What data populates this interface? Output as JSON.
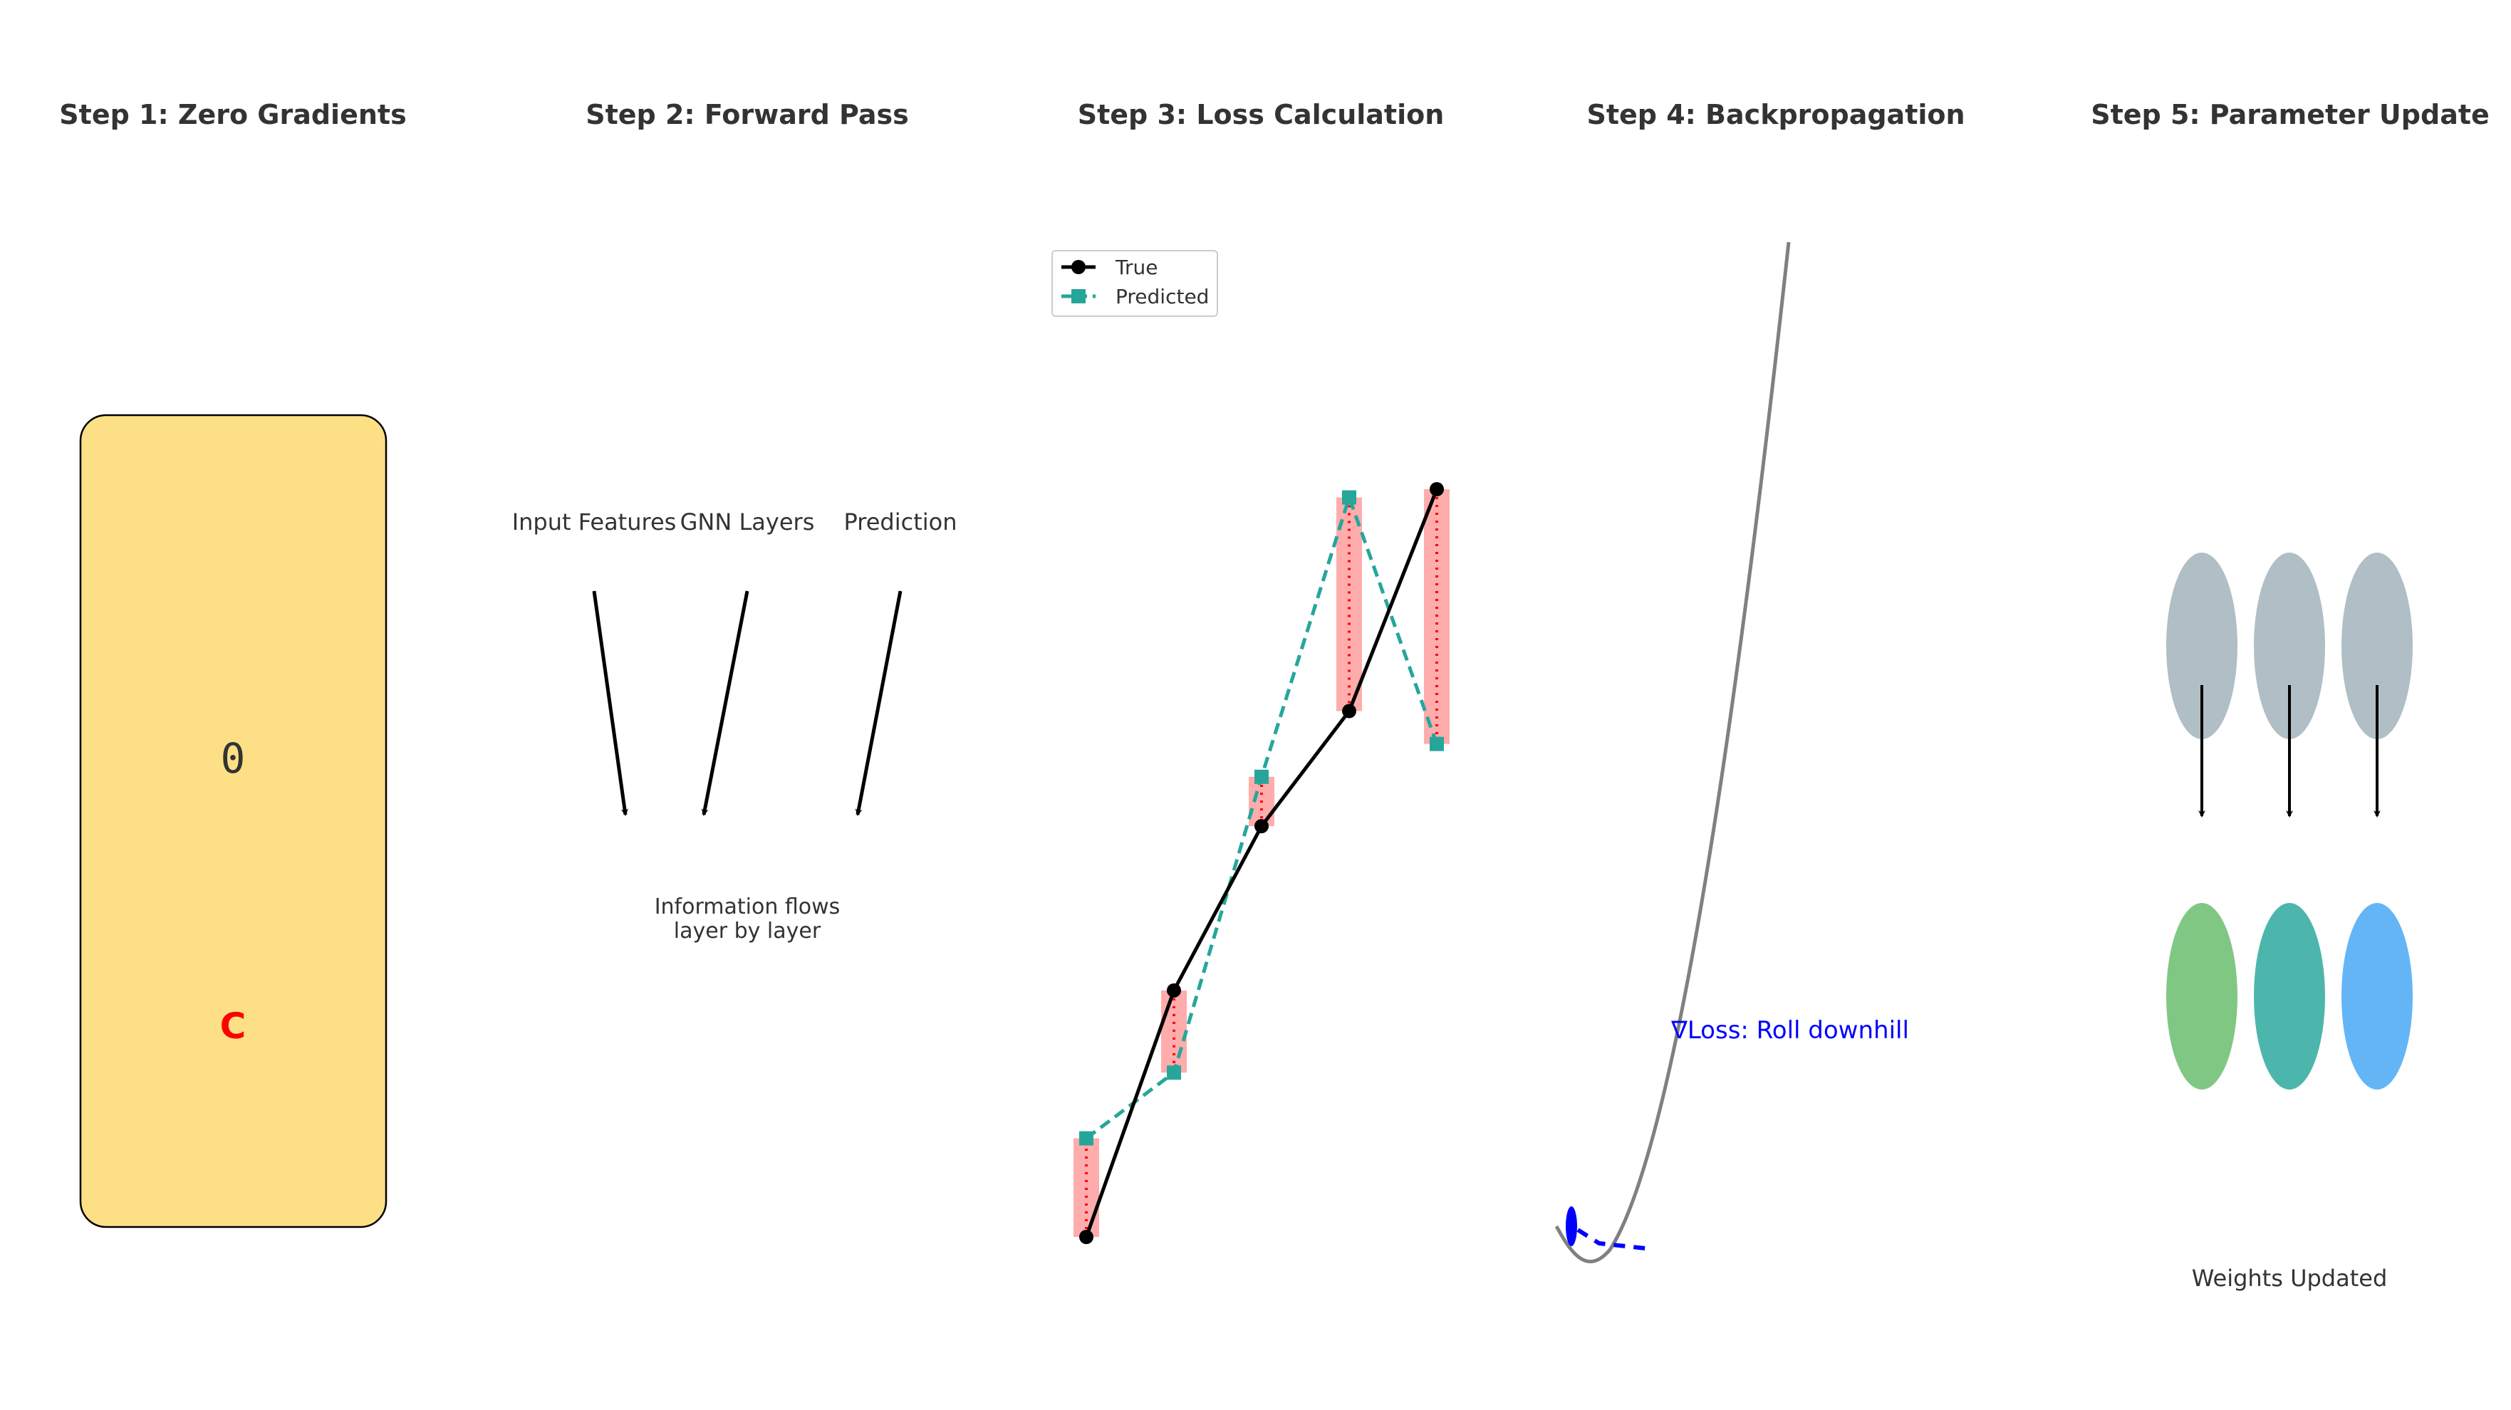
{
  "panels": [
    {
      "title": "Step 1: Zero Gradients"
    },
    {
      "title": "Step 2: Forward Pass"
    },
    {
      "title": "Step 3: Loss Calculation"
    },
    {
      "title": "Step 4: Backpropagation"
    },
    {
      "title": "Step 5: Parameter Update"
    }
  ],
  "step1": {
    "zero_label": "0",
    "c_label": "C",
    "box_color": "#fde085",
    "c_color": "#ff0000"
  },
  "step2": {
    "labels": [
      "Input Features",
      "GNN Layers",
      "Prediction"
    ],
    "caption_line1": "Information flows",
    "caption_line2": "layer by layer"
  },
  "step4": {
    "gradient_label": "∇Loss: Roll downhill",
    "label_color": "#0000ff",
    "curve_color": "#808080"
  },
  "step5": {
    "caption": "Weights Updated",
    "before_color": "#b0bec5",
    "after_colors": [
      "#81c784",
      "#4db6ac",
      "#64b5f6"
    ]
  },
  "chart_data": {
    "type": "line",
    "x": [
      1,
      2,
      3,
      4,
      5
    ],
    "series": [
      {
        "name": "True",
        "values": [
          0.0,
          0.3,
          0.5,
          0.64,
          0.91
        ],
        "color": "#000000",
        "style": "solid",
        "marker": "circle"
      },
      {
        "name": "Predicted",
        "values": [
          0.12,
          0.2,
          0.56,
          0.9,
          0.6
        ],
        "color": "#26a69a",
        "style": "dashed",
        "marker": "square"
      }
    ],
    "error_color": "#ff7f7f",
    "legend": "top-left"
  }
}
